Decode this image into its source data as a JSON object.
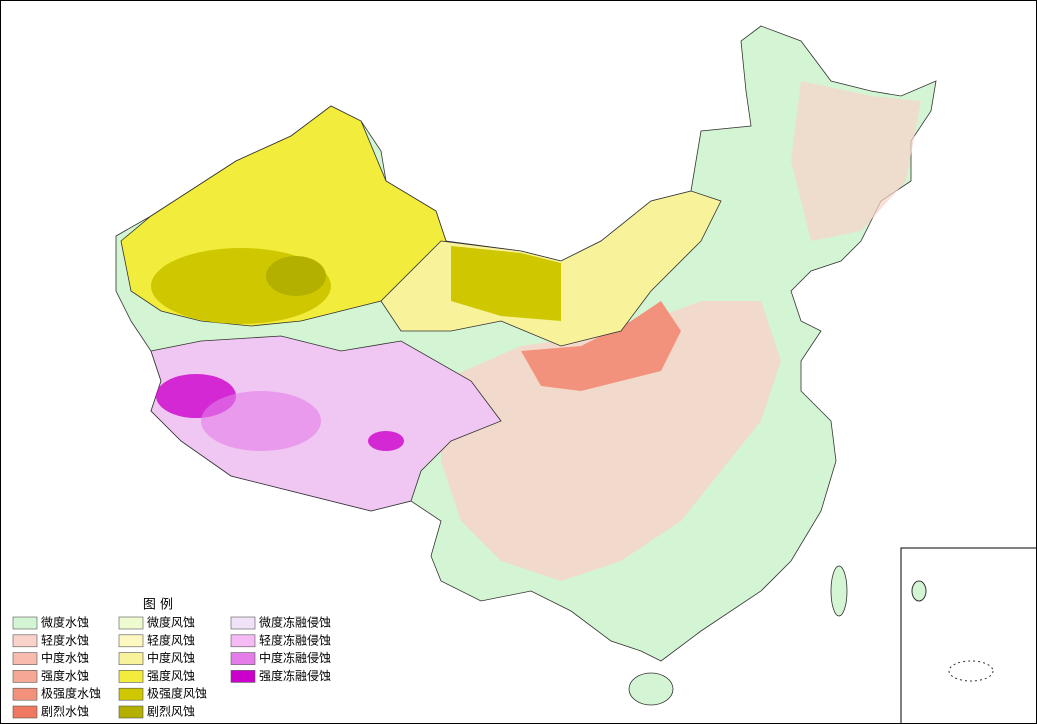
{
  "legend": {
    "title": "图 例",
    "items": [
      {
        "label": "微度水蚀",
        "color": "#d3f5d3"
      },
      {
        "label": "轻度水蚀",
        "color": "#f9d3ca"
      },
      {
        "label": "中度水蚀",
        "color": "#f7bcae"
      },
      {
        "label": "强度水蚀",
        "color": "#f5a894"
      },
      {
        "label": "极强度水蚀",
        "color": "#f3927c"
      },
      {
        "label": "剧烈水蚀",
        "color": "#f07860"
      },
      {
        "label": "微度风蚀",
        "color": "#eefbd0"
      },
      {
        "label": "轻度风蚀",
        "color": "#fdf8c0"
      },
      {
        "label": "中度风蚀",
        "color": "#f8f29a"
      },
      {
        "label": "强度风蚀",
        "color": "#f2ec3c"
      },
      {
        "label": "极强度风蚀",
        "color": "#cfc800"
      },
      {
        "label": "剧烈风蚀",
        "color": "#b3b000"
      },
      {
        "label": "微度冻融侵蚀",
        "color": "#f0e2f8"
      },
      {
        "label": "轻度冻融侵蚀",
        "color": "#f4bbf4"
      },
      {
        "label": "中度冻融侵蚀",
        "color": "#e57de8"
      },
      {
        "label": "强度冻融侵蚀",
        "color": "#cc00cc"
      }
    ]
  }
}
